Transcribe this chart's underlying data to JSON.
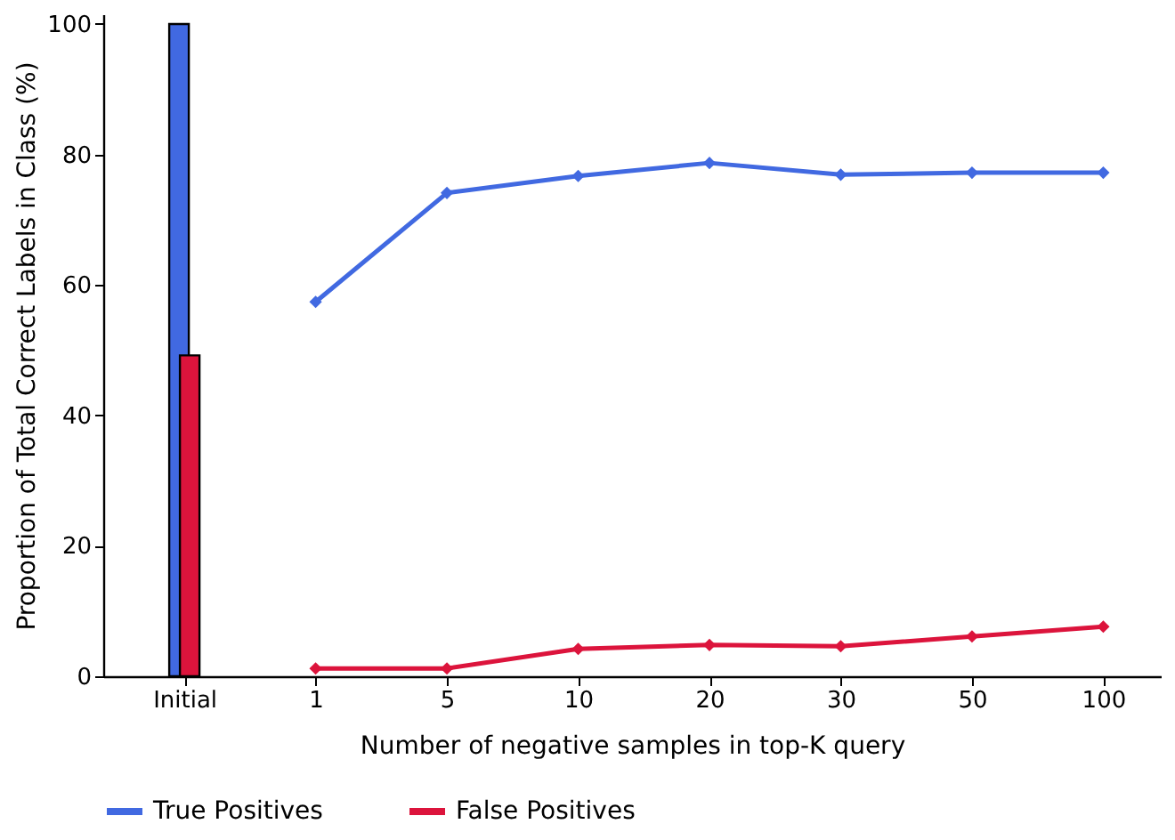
{
  "chart_data": {
    "type": "line",
    "xlabel": "Number of negative samples in top-K query",
    "ylabel": "Proportion of Total Correct Labels in Class (%)",
    "categories": [
      "Initial",
      "1",
      "5",
      "10",
      "20",
      "30",
      "50",
      "100"
    ],
    "series": [
      {
        "type": "bar",
        "color": "#4169e1",
        "values": [
          100,
          null,
          null,
          null,
          null,
          null,
          null,
          null
        ]
      },
      {
        "type": "bar",
        "color": "#dc143c",
        "values": [
          49.2,
          null,
          null,
          null,
          null,
          null,
          null,
          null
        ]
      },
      {
        "name": "True Positives",
        "color": "#4169e1",
        "values": [
          null,
          57.4,
          74.1,
          76.7,
          78.7,
          76.9,
          77.2,
          77.2
        ]
      },
      {
        "name": "False Positives",
        "color": "#dc143c",
        "values": [
          null,
          1.2,
          1.2,
          4.2,
          4.8,
          4.6,
          6.1,
          7.6
        ]
      }
    ],
    "ylim": [
      0,
      101.5
    ],
    "yticks": [
      0,
      20,
      40,
      60,
      80,
      100
    ],
    "grid": false,
    "legend": "bottom",
    "marker": "diamond",
    "line_style": "solid"
  }
}
